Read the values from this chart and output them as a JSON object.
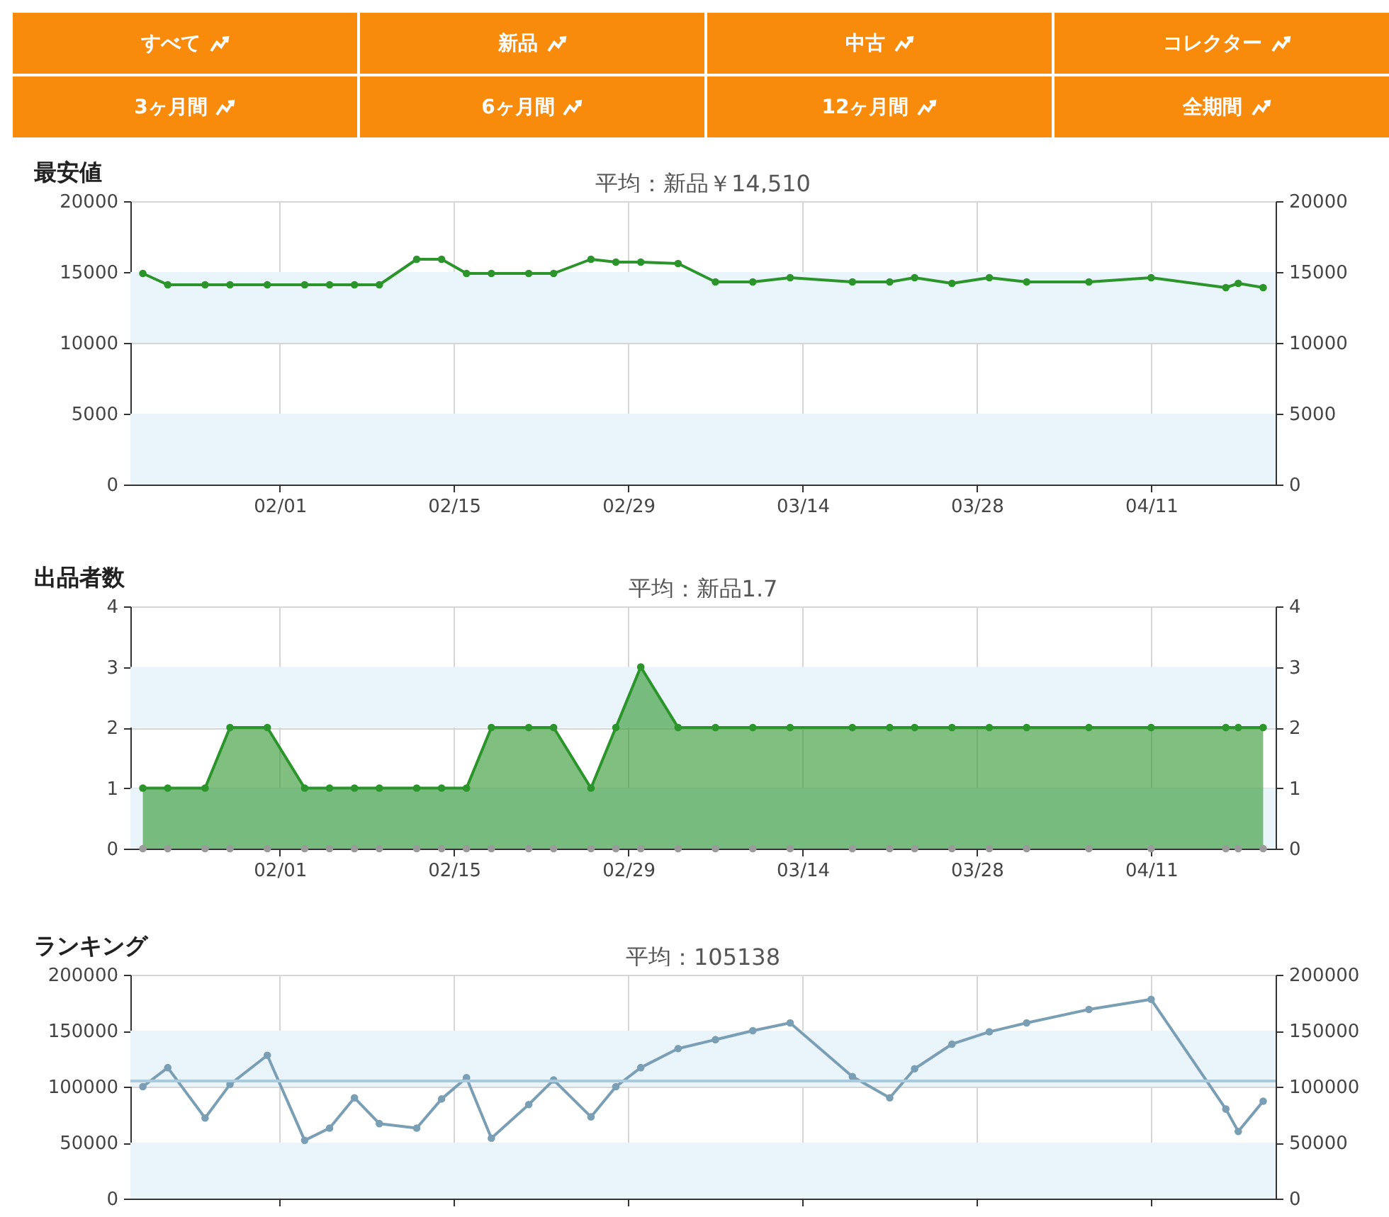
{
  "chart_data": [
    {
      "type": "other",
      "annotations": [
        "すべて",
        "新品",
        "中古",
        "コレクター",
        "3ヶ月間",
        "6ヶ月間",
        "12ヶ月間",
        "全期間"
      ]
    },
    {
      "type": "line",
      "title": "最安値",
      "subtitle": "平均：新品￥14,510",
      "marker": "circle",
      "grid": true,
      "x": [
        "--01-21",
        "--01-23",
        "--01-26",
        "--01-28",
        "--01-31",
        "--02-03",
        "--02-05",
        "--02-07",
        "--02-09",
        "--02-12",
        "--02-14",
        "--02-16",
        "--02-18",
        "--02-21",
        "--02-23",
        "--02-26",
        "--02-28",
        "--03-01",
        "--03-04",
        "--03-07",
        "--03-10",
        "--03-13",
        "--03-18",
        "--03-21",
        "--03-23",
        "--03-26",
        "--03-29",
        "--04-01",
        "--04-06",
        "--04-11",
        "--04-17",
        "--04-18",
        "--04-20"
      ],
      "xlim": [
        "--01-20",
        "--04-21"
      ],
      "xticks": [
        {
          "value": "--02-01",
          "label": "02/01"
        },
        {
          "value": "--02-15",
          "label": "02/15"
        },
        {
          "value": "--02-29",
          "label": "02/29"
        },
        {
          "value": "--03-14",
          "label": "03/14"
        },
        {
          "value": "--03-28",
          "label": "03/28"
        },
        {
          "value": "--04-11",
          "label": "04/11"
        }
      ],
      "ylim": [
        0,
        20000
      ],
      "yticks": [
        0,
        5000,
        10000,
        15000,
        20000
      ],
      "y2lim": [
        0,
        20000
      ],
      "y2ticks": [
        0,
        5000,
        10000,
        15000,
        20000
      ],
      "bands": [
        {
          "axis": "y",
          "from": 10000,
          "to": 15000,
          "color": "#eaf4fb"
        },
        {
          "axis": "y",
          "from": 0,
          "to": 5000,
          "color": "#eaf4fb"
        }
      ],
      "series": [
        {
          "color": "#2b952b",
          "values": [
            14900,
            14100,
            14100,
            14100,
            14100,
            14100,
            14100,
            14100,
            14100,
            15900,
            15900,
            14900,
            14900,
            14900,
            14900,
            15900,
            15700,
            15700,
            15600,
            14300,
            14300,
            14600,
            14300,
            14300,
            14600,
            14200,
            14600,
            14300,
            14300,
            14600,
            13900,
            14200,
            13900
          ]
        }
      ]
    },
    {
      "type": "area",
      "title": "出品者数",
      "subtitle": "平均：新品1.7",
      "marker": "circle",
      "grid": true,
      "x": [
        "--01-21",
        "--01-23",
        "--01-26",
        "--01-28",
        "--01-31",
        "--02-03",
        "--02-05",
        "--02-07",
        "--02-09",
        "--02-12",
        "--02-14",
        "--02-16",
        "--02-18",
        "--02-21",
        "--02-23",
        "--02-26",
        "--02-28",
        "--03-01",
        "--03-04",
        "--03-07",
        "--03-10",
        "--03-13",
        "--03-18",
        "--03-21",
        "--03-23",
        "--03-26",
        "--03-29",
        "--04-01",
        "--04-06",
        "--04-11",
        "--04-17",
        "--04-18",
        "--04-20"
      ],
      "xlim": [
        "--01-20",
        "--04-21"
      ],
      "xticks": [
        {
          "value": "--02-01",
          "label": "02/01"
        },
        {
          "value": "--02-15",
          "label": "02/15"
        },
        {
          "value": "--02-29",
          "label": "02/29"
        },
        {
          "value": "--03-14",
          "label": "03/14"
        },
        {
          "value": "--03-28",
          "label": "03/28"
        },
        {
          "value": "--04-11",
          "label": "04/11"
        }
      ],
      "ylim": [
        0,
        4
      ],
      "yticks": [
        0,
        1,
        2,
        3,
        4
      ],
      "y2lim": [
        0,
        4
      ],
      "y2ticks": [
        0,
        1,
        2,
        3,
        4
      ],
      "bands": [
        {
          "axis": "y",
          "from": 2,
          "to": 3,
          "color": "#eaf4fb"
        },
        {
          "axis": "y",
          "from": 0,
          "to": 1,
          "color": "#eaf4fb"
        }
      ],
      "series": [
        {
          "color": "#2b952b",
          "values": [
            1,
            1,
            1,
            2,
            2,
            1,
            1,
            1,
            1,
            1,
            1,
            1,
            2,
            2,
            2,
            1,
            2,
            3,
            2,
            2,
            2,
            2,
            2,
            2,
            2,
            2,
            2,
            2,
            2,
            2,
            2,
            2,
            2
          ]
        },
        {
          "type": "scatter",
          "color": "#9a9a9a",
          "values": [
            0,
            0,
            0,
            0,
            0,
            0,
            0,
            0,
            0,
            0,
            0,
            0,
            0,
            0,
            0,
            0,
            0,
            0,
            0,
            0,
            0,
            0,
            0,
            0,
            0,
            0,
            0,
            0,
            0,
            0,
            0,
            0,
            0
          ]
        }
      ]
    },
    {
      "type": "line",
      "title": "ランキング",
      "subtitle": "平均：105138",
      "marker": "circle",
      "grid": true,
      "tick_labels": "y",
      "x": [
        "--01-21",
        "--01-23",
        "--01-26",
        "--01-28",
        "--01-31",
        "--02-03",
        "--02-05",
        "--02-07",
        "--02-09",
        "--02-12",
        "--02-14",
        "--02-16",
        "--02-18",
        "--02-21",
        "--02-23",
        "--02-26",
        "--02-28",
        "--03-01",
        "--03-04",
        "--03-07",
        "--03-10",
        "--03-13",
        "--03-18",
        "--03-21",
        "--03-23",
        "--03-26",
        "--03-29",
        "--04-01",
        "--04-06",
        "--04-11",
        "--04-17",
        "--04-18",
        "--04-20"
      ],
      "xlim": [
        "--01-20",
        "--04-21"
      ],
      "xticks": [
        {
          "value": "--02-01",
          "label": null
        },
        {
          "value": "--02-15",
          "label": null
        },
        {
          "value": "--02-29",
          "label": null
        },
        {
          "value": "--03-14",
          "label": null
        },
        {
          "value": "--03-28",
          "label": null
        },
        {
          "value": "--04-11",
          "label": null
        }
      ],
      "ylim": [
        0,
        200000
      ],
      "yticks": [
        0,
        50000,
        100000,
        150000,
        200000
      ],
      "y2lim": [
        0,
        200000
      ],
      "y2ticks": [
        0,
        50000,
        100000,
        150000,
        200000
      ],
      "bands": [
        {
          "axis": "y",
          "from": 100000,
          "to": 150000,
          "color": "#eaf4fb"
        },
        {
          "axis": "y",
          "from": 0,
          "to": 50000,
          "color": "#eaf4fb"
        }
      ],
      "ref_lines": [
        {
          "axis": "y",
          "value": 105138,
          "color": "#a9c9dc"
        }
      ],
      "series": [
        {
          "color": "#7a9fb5",
          "values": [
            100000,
            117000,
            72000,
            102000,
            128000,
            52000,
            63000,
            90000,
            67000,
            63000,
            89000,
            108000,
            54000,
            84000,
            106000,
            73000,
            100000,
            117000,
            134000,
            142000,
            150000,
            157000,
            109000,
            90000,
            116000,
            138000,
            149000,
            157000,
            169000,
            178000,
            80000,
            60000,
            87000
          ]
        }
      ]
    }
  ]
}
